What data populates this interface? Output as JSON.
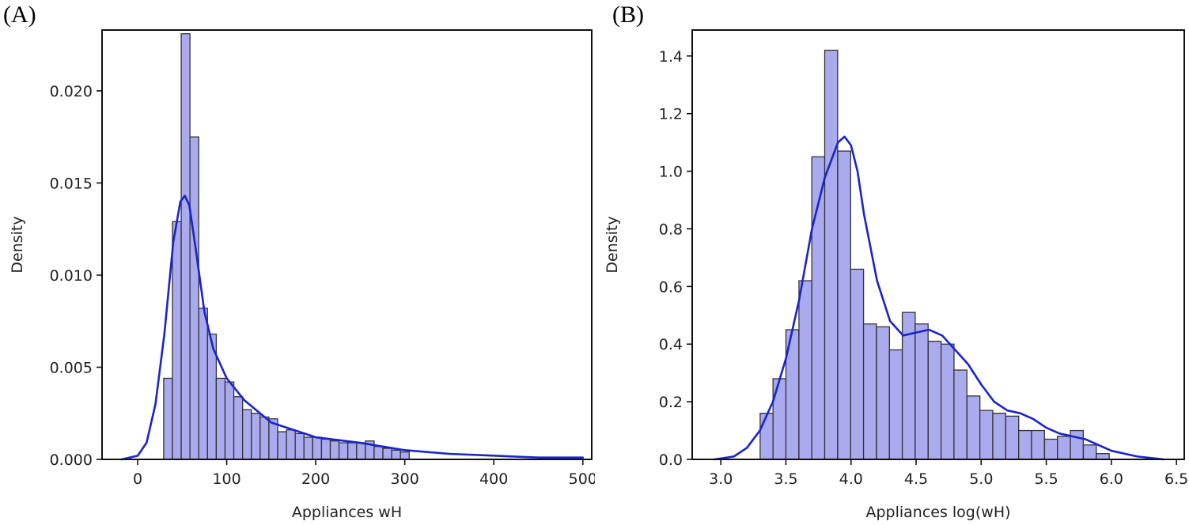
{
  "chart_data": [
    {
      "panel_label": "(A)",
      "type": "bar",
      "title": "",
      "xlabel": "Appliances wH",
      "ylabel": "Density",
      "xlim": [
        -40,
        510
      ],
      "ylim": [
        0,
        0.0233
      ],
      "xticks": [
        0,
        100,
        200,
        300,
        400,
        500
      ],
      "xtick_labels": [
        "0",
        "100",
        "200",
        "300",
        "400",
        "500"
      ],
      "yticks": [
        0,
        0.005,
        0.01,
        0.015,
        0.02
      ],
      "ytick_labels": [
        "0.000",
        "0.005",
        "0.010",
        "0.015",
        "0.020"
      ],
      "grid": false,
      "histogram": {
        "bin_width": 9.85,
        "bin_starts": [
          29.2,
          39.05,
          48.9,
          58.75,
          68.6,
          78.45,
          88.3,
          98.15,
          108.0,
          117.85,
          127.7,
          137.55,
          147.4,
          157.25,
          167.1,
          176.95,
          186.8,
          196.65,
          206.5,
          216.35,
          226.2,
          236.05,
          245.9,
          255.75,
          265.6,
          275.45,
          285.3,
          295.15
        ],
        "values": [
          0.0044,
          0.0129,
          0.0231,
          0.0175,
          0.0082,
          0.0068,
          0.0044,
          0.0042,
          0.0034,
          0.0027,
          0.0025,
          0.0023,
          0.0022,
          0.0015,
          0.0016,
          0.0014,
          0.0012,
          0.0012,
          0.0011,
          0.001,
          0.0009,
          0.0009,
          0.0009,
          0.001,
          0.0007,
          0.0006,
          0.0005,
          0.0004
        ]
      },
      "kde": {
        "x": [
          -18,
          0,
          10,
          20,
          30,
          40,
          48,
          53,
          58,
          65,
          75,
          85,
          100,
          120,
          150,
          200,
          250,
          300,
          350,
          400,
          450,
          500
        ],
        "y": [
          0.0,
          0.0002,
          0.0009,
          0.003,
          0.0068,
          0.0118,
          0.014,
          0.0143,
          0.0138,
          0.0115,
          0.008,
          0.006,
          0.0044,
          0.0032,
          0.002,
          0.0012,
          0.0009,
          0.0005,
          0.0003,
          0.0002,
          0.0001,
          0.0001
        ]
      },
      "colors": {
        "bar_fill": "#aaaaee",
        "bar_edge": "#333333",
        "kde_line": "#1a24cc"
      }
    },
    {
      "panel_label": "(B)",
      "type": "bar",
      "title": "",
      "xlabel": "Appliances log(wH)",
      "ylabel": "Density",
      "xlim": [
        2.78,
        6.56
      ],
      "ylim": [
        0,
        1.49
      ],
      "xticks": [
        3.0,
        3.5,
        4.0,
        4.5,
        5.0,
        5.5,
        6.0,
        6.5
      ],
      "xtick_labels": [
        "3.0",
        "3.5",
        "4.0",
        "4.5",
        "5.0",
        "5.5",
        "6.0",
        "6.5"
      ],
      "yticks": [
        0,
        0.2,
        0.4,
        0.6,
        0.8,
        1.0,
        1.2,
        1.4
      ],
      "ytick_labels": [
        "0.0",
        "0.2",
        "0.4",
        "0.6",
        "0.8",
        "1.0",
        "1.2",
        "1.4"
      ],
      "grid": false,
      "histogram": {
        "bin_width": 0.0993,
        "bin_starts": [
          3.302,
          3.401,
          3.5,
          3.6,
          3.699,
          3.798,
          3.898,
          3.997,
          4.096,
          4.196,
          4.295,
          4.394,
          4.493,
          4.593,
          4.692,
          4.791,
          4.891,
          4.99,
          5.089,
          5.189,
          5.288,
          5.387,
          5.487,
          5.586,
          5.685,
          5.785,
          5.884
        ],
        "values": [
          0.16,
          0.28,
          0.45,
          0.62,
          1.05,
          1.42,
          1.07,
          0.66,
          0.47,
          0.46,
          0.38,
          0.51,
          0.47,
          0.41,
          0.4,
          0.31,
          0.22,
          0.17,
          0.16,
          0.15,
          0.1,
          0.1,
          0.07,
          0.08,
          0.1,
          0.05,
          0.02
        ]
      },
      "kde": {
        "x": [
          2.95,
          3.1,
          3.2,
          3.3,
          3.4,
          3.5,
          3.6,
          3.7,
          3.8,
          3.9,
          3.95,
          4.0,
          4.05,
          4.1,
          4.2,
          4.3,
          4.4,
          4.5,
          4.6,
          4.7,
          4.8,
          4.9,
          5.0,
          5.1,
          5.2,
          5.3,
          5.4,
          5.5,
          5.6,
          5.7,
          5.8,
          5.9,
          6.0,
          6.1,
          6.2,
          6.3,
          6.4
        ],
        "y": [
          0.0,
          0.01,
          0.04,
          0.1,
          0.2,
          0.35,
          0.55,
          0.8,
          0.98,
          1.1,
          1.12,
          1.09,
          1.0,
          0.85,
          0.62,
          0.48,
          0.43,
          0.44,
          0.45,
          0.43,
          0.38,
          0.33,
          0.26,
          0.2,
          0.17,
          0.16,
          0.14,
          0.11,
          0.09,
          0.08,
          0.07,
          0.05,
          0.03,
          0.02,
          0.01,
          0.005,
          0.0
        ],
        "colors": null
      },
      "colors": {
        "bar_fill": "#aaaaee",
        "bar_edge": "#333333",
        "kde_line": "#1a24cc"
      }
    }
  ]
}
